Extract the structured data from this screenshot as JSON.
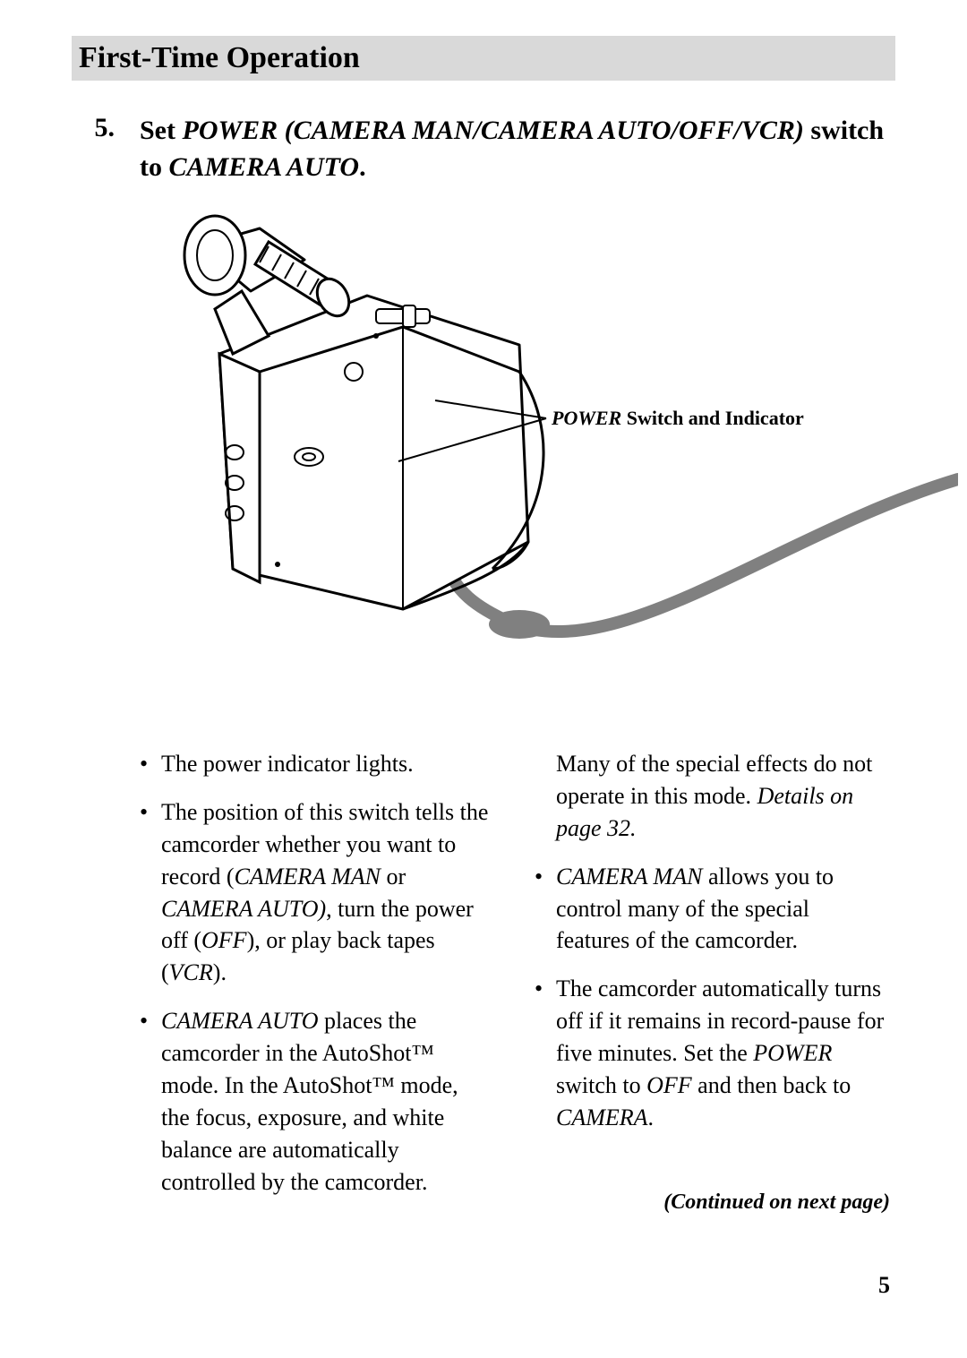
{
  "header": {
    "title": "First-Time Operation"
  },
  "step": {
    "number": "5.",
    "prefix": "Set ",
    "power_label": "POWER (CAMERA MAN/CAMERA AUTO/OFF/VCR)",
    "middle": " switch to ",
    "target": "CAMERA AUTO",
    "suffix": "."
  },
  "callout": {
    "power": "POWER",
    "rest": " Switch and Indicator"
  },
  "left_bullets": [
    {
      "segments": [
        {
          "t": "The power indicator lights.",
          "i": false
        }
      ]
    },
    {
      "segments": [
        {
          "t": "The position of this switch tells the camcorder whether you want to record (",
          "i": false
        },
        {
          "t": "CAMERA MAN",
          "i": true
        },
        {
          "t": " or ",
          "i": false
        },
        {
          "t": "CAMERA AUTO)",
          "i": true
        },
        {
          "t": ", turn the power off (",
          "i": false
        },
        {
          "t": "OFF",
          "i": true
        },
        {
          "t": "), or play back tapes (",
          "i": false
        },
        {
          "t": "VCR",
          "i": true
        },
        {
          "t": ").",
          "i": false
        }
      ]
    },
    {
      "segments": [
        {
          "t": "CAMERA AUTO",
          "i": true
        },
        {
          "t": " places the camcorder in the AutoShot™ mode. In the AutoShot™ mode, the focus, exposure, and white balance are automatically controlled by the camcorder.",
          "i": false
        }
      ]
    }
  ],
  "right_lead": {
    "segments": [
      {
        "t": "Many of the special effects do not operate in this mode.  ",
        "i": false
      },
      {
        "t": "Details on page 32.",
        "i": true
      }
    ]
  },
  "right_bullets": [
    {
      "segments": [
        {
          "t": "CAMERA MAN",
          "i": true
        },
        {
          "t": " allows you to control many of the special features of the camcorder.",
          "i": false
        }
      ]
    },
    {
      "segments": [
        {
          "t": "The camcorder automatically turns off if it remains in record-pause for five minutes.  Set the ",
          "i": false
        },
        {
          "t": "POWER",
          "i": true
        },
        {
          "t": " switch to ",
          "i": false
        },
        {
          "t": "OFF",
          "i": true
        },
        {
          "t": " and then back to ",
          "i": false
        },
        {
          "t": "CAMERA",
          "i": true
        },
        {
          "t": ".",
          "i": false
        }
      ]
    }
  ],
  "continued": "(Continued on next page)",
  "page_number": "5",
  "figure": {
    "stroke": "#000000",
    "fill_body": "#ffffff",
    "cable_color": "#808080",
    "cable_width": 14
  }
}
